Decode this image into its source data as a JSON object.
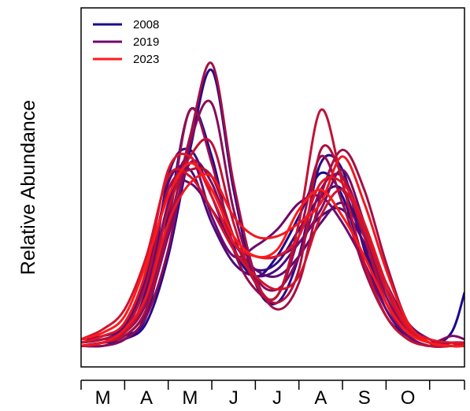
{
  "chart_data": {
    "type": "line",
    "ylabel": "Relative Abundance",
    "xlabel": "",
    "x_tick_labels": [
      "M",
      "A",
      "M",
      "J",
      "J",
      "A",
      "S",
      "O"
    ],
    "xlim": [
      0,
      8.8
    ],
    "ylim": [
      0,
      1
    ],
    "grid": false,
    "legend_position": "top-left",
    "legend": [
      {
        "name": "2008",
        "color": "#1a0a8c"
      },
      {
        "name": "2019",
        "color": "#6e0a6e"
      },
      {
        "name": "2023",
        "color": "#ff1a1a"
      }
    ],
    "color_gradient": [
      "#1a0a8c",
      "#6e0a6e",
      "#b0103c",
      "#ff1a1a"
    ],
    "x_sample": [
      0,
      0.5,
      1.0,
      1.5,
      2.0,
      2.5,
      3.0,
      3.5,
      4.0,
      4.5,
      5.0,
      5.5,
      6.0,
      6.5,
      7.0,
      7.5,
      8.0,
      8.5,
      8.8
    ],
    "series": [
      {
        "values": [
          0.03,
          0.04,
          0.06,
          0.12,
          0.42,
          0.74,
          0.6,
          0.33,
          0.24,
          0.3,
          0.42,
          0.55,
          0.48,
          0.28,
          0.12,
          0.06,
          0.03,
          0.07,
          0.19
        ]
      },
      {
        "values": [
          0.03,
          0.03,
          0.05,
          0.1,
          0.3,
          0.62,
          0.86,
          0.5,
          0.22,
          0.16,
          0.3,
          0.58,
          0.56,
          0.32,
          0.14,
          0.06,
          0.03,
          0.03,
          0.04
        ]
      },
      {
        "values": [
          0.03,
          0.04,
          0.05,
          0.14,
          0.54,
          0.62,
          0.48,
          0.32,
          0.26,
          0.28,
          0.38,
          0.48,
          0.5,
          0.33,
          0.16,
          0.08,
          0.04,
          0.03,
          0.03
        ]
      },
      {
        "values": [
          0.04,
          0.05,
          0.07,
          0.2,
          0.52,
          0.56,
          0.4,
          0.28,
          0.24,
          0.26,
          0.34,
          0.42,
          0.44,
          0.34,
          0.2,
          0.09,
          0.04,
          0.03,
          0.03
        ]
      },
      {
        "values": [
          0.05,
          0.06,
          0.09,
          0.24,
          0.5,
          0.52,
          0.44,
          0.34,
          0.26,
          0.24,
          0.3,
          0.4,
          0.46,
          0.36,
          0.22,
          0.1,
          0.05,
          0.03,
          0.03
        ]
      },
      {
        "values": [
          0.04,
          0.05,
          0.08,
          0.18,
          0.46,
          0.6,
          0.42,
          0.3,
          0.33,
          0.38,
          0.46,
          0.48,
          0.4,
          0.28,
          0.14,
          0.06,
          0.03,
          0.04,
          0.04
        ]
      },
      {
        "values": [
          0.03,
          0.04,
          0.06,
          0.14,
          0.36,
          0.58,
          0.52,
          0.34,
          0.3,
          0.3,
          0.34,
          0.44,
          0.56,
          0.4,
          0.2,
          0.08,
          0.04,
          0.06,
          0.05
        ]
      },
      {
        "values": [
          0.03,
          0.03,
          0.05,
          0.12,
          0.32,
          0.64,
          0.76,
          0.44,
          0.24,
          0.2,
          0.3,
          0.5,
          0.54,
          0.38,
          0.18,
          0.08,
          0.04,
          0.04,
          0.03
        ]
      },
      {
        "values": [
          0.04,
          0.05,
          0.07,
          0.16,
          0.4,
          0.74,
          0.58,
          0.32,
          0.2,
          0.18,
          0.36,
          0.6,
          0.46,
          0.26,
          0.12,
          0.05,
          0.03,
          0.03,
          0.03
        ]
      },
      {
        "values": [
          0.03,
          0.04,
          0.06,
          0.14,
          0.38,
          0.66,
          0.88,
          0.52,
          0.24,
          0.14,
          0.22,
          0.48,
          0.62,
          0.5,
          0.28,
          0.1,
          0.04,
          0.03,
          0.03
        ]
      },
      {
        "values": [
          0.04,
          0.05,
          0.08,
          0.22,
          0.5,
          0.56,
          0.54,
          0.36,
          0.22,
          0.16,
          0.26,
          0.62,
          0.54,
          0.36,
          0.16,
          0.07,
          0.04,
          0.03,
          0.03
        ]
      },
      {
        "values": [
          0.03,
          0.04,
          0.07,
          0.18,
          0.44,
          0.6,
          0.64,
          0.4,
          0.22,
          0.18,
          0.4,
          0.74,
          0.52,
          0.28,
          0.12,
          0.05,
          0.03,
          0.03,
          0.04
        ]
      },
      {
        "values": [
          0.05,
          0.08,
          0.14,
          0.3,
          0.54,
          0.54,
          0.44,
          0.32,
          0.24,
          0.2,
          0.24,
          0.42,
          0.5,
          0.38,
          0.2,
          0.08,
          0.04,
          0.03,
          0.03
        ]
      },
      {
        "values": [
          0.04,
          0.06,
          0.1,
          0.26,
          0.56,
          0.6,
          0.48,
          0.34,
          0.3,
          0.3,
          0.36,
          0.52,
          0.52,
          0.4,
          0.22,
          0.09,
          0.05,
          0.04,
          0.04
        ]
      },
      {
        "values": [
          0.03,
          0.04,
          0.08,
          0.18,
          0.4,
          0.52,
          0.54,
          0.42,
          0.36,
          0.36,
          0.4,
          0.46,
          0.6,
          0.46,
          0.26,
          0.1,
          0.04,
          0.03,
          0.03
        ]
      },
      {
        "values": [
          0.05,
          0.07,
          0.12,
          0.28,
          0.48,
          0.58,
          0.5,
          0.36,
          0.3,
          0.32,
          0.44,
          0.5,
          0.42,
          0.3,
          0.16,
          0.07,
          0.04,
          0.03,
          0.03
        ]
      }
    ]
  }
}
